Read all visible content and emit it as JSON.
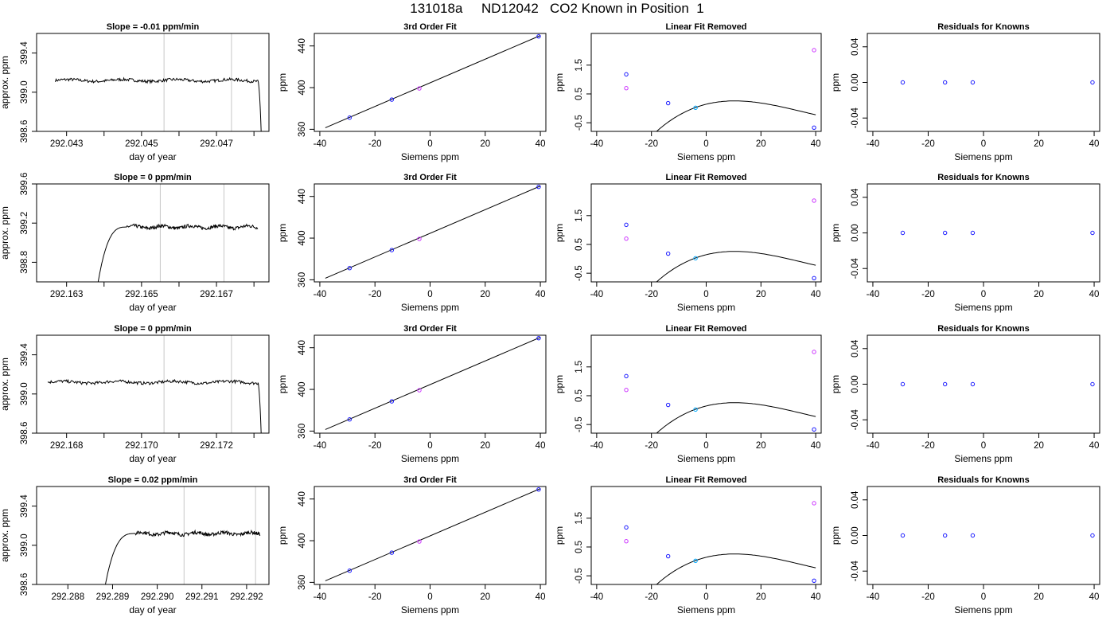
{
  "title": "131018a     ND12042   CO2 Known in Position  1",
  "colors": {
    "trace": "#000000",
    "vline": "#c8c8c8",
    "fit": "#000000",
    "known_point": "#1a1aff",
    "unknown_point": "#cc33ff",
    "mid_point": "#00aaff"
  },
  "chart_data": [
    {
      "type": "line",
      "row": 0,
      "title": "Slope =  -0.01  ppm/min",
      "xlabel": "day of year",
      "ylabel": "approx. ppm",
      "xlim": [
        292.0422,
        292.0484
      ],
      "ylim": [
        398.6,
        399.6
      ],
      "xticks": [
        292.043,
        292.044,
        292.045,
        292.046,
        292.047,
        292.048
      ],
      "xticklabels": [
        "292.043",
        "",
        "292.045",
        "",
        "292.047",
        ""
      ],
      "yticks": [
        398.6,
        399.0,
        399.4
      ],
      "yticklabels": [
        "398.6",
        "399.0",
        "399.4"
      ],
      "vlines": [
        292.0456,
        292.0474
      ],
      "trace": {
        "x0": 292.0427,
        "x_plateau_end": 292.0481,
        "x1": 292.0482,
        "level": 399.12,
        "rise": "none"
      }
    },
    {
      "type": "scatter",
      "row": 0,
      "title": "3rd Order Fit",
      "xlabel": "Siemens ppm",
      "ylabel": "ppm",
      "xlim": [
        -42,
        42
      ],
      "ylim": [
        358,
        452
      ],
      "xticks": [
        -40,
        -20,
        0,
        20,
        40
      ],
      "yticks": [
        360,
        400,
        440
      ],
      "fit": {
        "kind": "line",
        "x": [
          -38,
          40
        ],
        "y": [
          361.5,
          450
        ]
      },
      "points": [
        {
          "x": -29.2,
          "y": 371.2,
          "c": "known"
        },
        {
          "x": -13.9,
          "y": 388.5,
          "c": "known"
        },
        {
          "x": -3.9,
          "y": 399.2,
          "c": "unknown"
        },
        {
          "x": 39.4,
          "y": 449.2,
          "c": "known"
        }
      ]
    },
    {
      "type": "scatter",
      "row": 0,
      "title": "Linear Fit Removed",
      "xlabel": "Siemens ppm",
      "ylabel": "ppm",
      "xlim": [
        -42,
        42
      ],
      "ylim": [
        -0.8,
        2.6
      ],
      "xticks": [
        -40,
        -20,
        0,
        20,
        40
      ],
      "yticks": [
        -0.5,
        0.5,
        1.5
      ],
      "yticklabels": [
        "-0.5",
        "0.5",
        "1.5"
      ],
      "fit": {
        "kind": "cubic",
        "x_from": -38.5,
        "x_to": 40,
        "coef": [
          -4.16,
          2.04,
          -0.0296,
          0.000129
        ]
      },
      "points": [
        {
          "x": -29.2,
          "y": 1.18,
          "c": "known"
        },
        {
          "x": -13.9,
          "y": 0.18,
          "c": "known"
        },
        {
          "x": -3.9,
          "y": 0.02,
          "c": "mid"
        },
        {
          "x": 39.4,
          "y": -0.67,
          "c": "known"
        },
        {
          "x": -29.2,
          "y": 0.7,
          "c": "unknown"
        },
        {
          "x": 39.4,
          "y": 2.02,
          "c": "unknown"
        }
      ]
    },
    {
      "type": "scatter",
      "row": 0,
      "title": "Residuals for Knowns",
      "xlabel": "Siemens ppm",
      "ylabel": "ppm",
      "xlim": [
        -42,
        42
      ],
      "ylim": [
        -0.055,
        0.055
      ],
      "xticks": [
        -40,
        -20,
        0,
        20,
        40
      ],
      "yticks": [
        -0.04,
        0.0,
        0.04
      ],
      "yticklabels": [
        "-0.04",
        "0.00",
        "0.04"
      ],
      "points": [
        {
          "x": -29.2,
          "y": 0,
          "c": "known"
        },
        {
          "x": -13.9,
          "y": 0,
          "c": "known"
        },
        {
          "x": -3.9,
          "y": 0,
          "c": "known"
        },
        {
          "x": 39.4,
          "y": 0,
          "c": "known"
        }
      ]
    },
    {
      "type": "line",
      "row": 1,
      "title": "Slope =  0  ppm/min",
      "xlabel": "day of year",
      "ylabel": "approx. ppm",
      "xlim": [
        292.1622,
        292.1684
      ],
      "ylim": [
        398.6,
        399.6
      ],
      "xticks": [
        292.163,
        292.164,
        292.165,
        292.166,
        292.167,
        292.168
      ],
      "xticklabels": [
        "292.163",
        "",
        "292.165",
        "",
        "292.167",
        ""
      ],
      "yticks": [
        398.8,
        399.2,
        399.6
      ],
      "yticklabels": [
        "398.8",
        "399.2",
        "399.6"
      ],
      "vlines": [
        292.1655,
        292.1672
      ],
      "trace": {
        "x0": 292.1638,
        "x_rise_end": 292.1646,
        "x1": 292.1681,
        "level": 399.16,
        "rise": "up"
      }
    },
    {
      "type": "scatter",
      "row": 1,
      "title": "3rd Order Fit",
      "xlabel": "Siemens ppm",
      "ylabel": "ppm",
      "xlim": [
        -42,
        42
      ],
      "ylim": [
        358,
        452
      ],
      "xticks": [
        -40,
        -20,
        0,
        20,
        40
      ],
      "yticks": [
        360,
        400,
        440
      ],
      "fit": {
        "kind": "line",
        "x": [
          -38,
          40
        ],
        "y": [
          361.5,
          450
        ]
      },
      "points": [
        {
          "x": -29.2,
          "y": 371.2,
          "c": "known"
        },
        {
          "x": -13.9,
          "y": 388.5,
          "c": "known"
        },
        {
          "x": -3.9,
          "y": 399.2,
          "c": "unknown"
        },
        {
          "x": 39.4,
          "y": 449.2,
          "c": "known"
        }
      ]
    },
    {
      "type": "scatter",
      "row": 1,
      "title": "Linear Fit Removed",
      "xlabel": "Siemens ppm",
      "ylabel": "ppm",
      "xlim": [
        -42,
        42
      ],
      "ylim": [
        -0.8,
        2.6
      ],
      "xticks": [
        -40,
        -20,
        0,
        20,
        40
      ],
      "yticks": [
        -0.5,
        0.5,
        1.5
      ],
      "yticklabels": [
        "-0.5",
        "0.5",
        "1.5"
      ],
      "fit": {
        "kind": "cubic",
        "x_from": -38.5,
        "x_to": 40,
        "coef": [
          -4.16,
          2.04,
          -0.0296,
          0.000129
        ]
      },
      "points": [
        {
          "x": -29.2,
          "y": 1.18,
          "c": "known"
        },
        {
          "x": -13.9,
          "y": 0.18,
          "c": "known"
        },
        {
          "x": -3.9,
          "y": 0.02,
          "c": "mid"
        },
        {
          "x": 39.4,
          "y": -0.67,
          "c": "known"
        },
        {
          "x": -29.2,
          "y": 0.7,
          "c": "unknown"
        },
        {
          "x": 39.4,
          "y": 2.02,
          "c": "unknown"
        }
      ]
    },
    {
      "type": "scatter",
      "row": 1,
      "title": "Residuals for Knowns",
      "xlabel": "Siemens ppm",
      "ylabel": "ppm",
      "xlim": [
        -42,
        42
      ],
      "ylim": [
        -0.055,
        0.055
      ],
      "xticks": [
        -40,
        -20,
        0,
        20,
        40
      ],
      "yticks": [
        -0.04,
        0.0,
        0.04
      ],
      "yticklabels": [
        "-0.04",
        "0.00",
        "0.04"
      ],
      "points": [
        {
          "x": -29.2,
          "y": 0,
          "c": "known"
        },
        {
          "x": -13.9,
          "y": 0,
          "c": "known"
        },
        {
          "x": -3.9,
          "y": 0,
          "c": "known"
        },
        {
          "x": 39.4,
          "y": 0,
          "c": "known"
        }
      ]
    },
    {
      "type": "line",
      "row": 2,
      "title": "Slope =  0  ppm/min",
      "xlabel": "day of year",
      "ylabel": "approx. ppm",
      "xlim": [
        292.1672,
        292.1734
      ],
      "ylim": [
        398.6,
        399.6
      ],
      "xticks": [
        292.168,
        292.169,
        292.17,
        292.171,
        292.172,
        292.173
      ],
      "xticklabels": [
        "292.168",
        "",
        "292.170",
        "",
        "292.172",
        ""
      ],
      "yticks": [
        398.6,
        399.0,
        399.4
      ],
      "yticklabels": [
        "398.6",
        "399.0",
        "399.4"
      ],
      "vlines": [
        292.1706,
        292.1724
      ],
      "trace": {
        "x0": 292.1675,
        "x_plateau_end": 292.1731,
        "x1": 292.1732,
        "level": 399.12,
        "rise": "none"
      }
    },
    {
      "type": "scatter",
      "row": 2,
      "title": "3rd Order Fit",
      "xlabel": "Siemens ppm",
      "ylabel": "ppm",
      "xlim": [
        -42,
        42
      ],
      "ylim": [
        358,
        452
      ],
      "xticks": [
        -40,
        -20,
        0,
        20,
        40
      ],
      "yticks": [
        360,
        400,
        440
      ],
      "fit": {
        "kind": "line",
        "x": [
          -38,
          40
        ],
        "y": [
          361.5,
          450
        ]
      },
      "points": [
        {
          "x": -29.2,
          "y": 371.2,
          "c": "known"
        },
        {
          "x": -13.9,
          "y": 388.5,
          "c": "known"
        },
        {
          "x": -3.9,
          "y": 399.2,
          "c": "unknown"
        },
        {
          "x": 39.4,
          "y": 449.2,
          "c": "known"
        }
      ]
    },
    {
      "type": "scatter",
      "row": 2,
      "title": "Linear Fit Removed",
      "xlabel": "Siemens ppm",
      "ylabel": "ppm",
      "xlim": [
        -42,
        42
      ],
      "ylim": [
        -0.8,
        2.6
      ],
      "xticks": [
        -40,
        -20,
        0,
        20,
        40
      ],
      "yticks": [
        -0.5,
        0.5,
        1.5
      ],
      "yticklabels": [
        "-0.5",
        "0.5",
        "1.5"
      ],
      "fit": {
        "kind": "cubic",
        "x_from": -38.5,
        "x_to": 40,
        "coef": [
          -4.16,
          2.04,
          -0.0296,
          0.000129
        ]
      },
      "points": [
        {
          "x": -29.2,
          "y": 1.18,
          "c": "known"
        },
        {
          "x": -13.9,
          "y": 0.18,
          "c": "known"
        },
        {
          "x": -3.9,
          "y": 0.02,
          "c": "mid"
        },
        {
          "x": 39.4,
          "y": -0.67,
          "c": "known"
        },
        {
          "x": -29.2,
          "y": 0.7,
          "c": "unknown"
        },
        {
          "x": 39.4,
          "y": 2.02,
          "c": "unknown"
        }
      ]
    },
    {
      "type": "scatter",
      "row": 2,
      "title": "Residuals for Knowns",
      "xlabel": "Siemens ppm",
      "ylabel": "ppm",
      "xlim": [
        -42,
        42
      ],
      "ylim": [
        -0.055,
        0.055
      ],
      "xticks": [
        -40,
        -20,
        0,
        20,
        40
      ],
      "yticks": [
        -0.04,
        0.0,
        0.04
      ],
      "yticklabels": [
        "-0.04",
        "0.00",
        "0.04"
      ],
      "points": [
        {
          "x": -29.2,
          "y": 0,
          "c": "known"
        },
        {
          "x": -13.9,
          "y": 0,
          "c": "known"
        },
        {
          "x": -3.9,
          "y": 0,
          "c": "known"
        },
        {
          "x": 39.4,
          "y": 0,
          "c": "known"
        }
      ]
    },
    {
      "type": "line",
      "row": 3,
      "title": "Slope =  0.02  ppm/min",
      "xlabel": "day of year",
      "ylabel": "approx. ppm",
      "xlim": [
        292.2873,
        292.2925
      ],
      "ylim": [
        398.6,
        399.6
      ],
      "xticks": [
        292.288,
        292.289,
        292.29,
        292.291,
        292.292
      ],
      "xticklabels": [
        "292.288",
        "292.289",
        "292.290",
        "292.291",
        "292.292"
      ],
      "yticks": [
        398.6,
        399.0,
        399.4
      ],
      "yticklabels": [
        "398.6",
        "399.0",
        "399.4"
      ],
      "vlines": [
        292.2906,
        292.2922
      ],
      "trace": {
        "x0": 292.2888,
        "x_rise_end": 292.2895,
        "x1": 292.2923,
        "level": 399.12,
        "rise": "up"
      }
    },
    {
      "type": "scatter",
      "row": 3,
      "title": "3rd Order Fit",
      "xlabel": "Siemens ppm",
      "ylabel": "ppm",
      "xlim": [
        -42,
        42
      ],
      "ylim": [
        358,
        452
      ],
      "xticks": [
        -40,
        -20,
        0,
        20,
        40
      ],
      "yticks": [
        360,
        400,
        440
      ],
      "fit": {
        "kind": "line",
        "x": [
          -38,
          40
        ],
        "y": [
          361.5,
          450
        ]
      },
      "points": [
        {
          "x": -29.2,
          "y": 371.2,
          "c": "known"
        },
        {
          "x": -13.9,
          "y": 388.5,
          "c": "known"
        },
        {
          "x": -3.9,
          "y": 399.2,
          "c": "unknown"
        },
        {
          "x": 39.4,
          "y": 449.2,
          "c": "known"
        }
      ]
    },
    {
      "type": "scatter",
      "row": 3,
      "title": "Linear Fit Removed",
      "xlabel": "Siemens ppm",
      "ylabel": "ppm",
      "xlim": [
        -42,
        42
      ],
      "ylim": [
        -0.8,
        2.6
      ],
      "xticks": [
        -40,
        -20,
        0,
        20,
        40
      ],
      "yticks": [
        -0.5,
        0.5,
        1.5
      ],
      "yticklabels": [
        "-0.5",
        "0.5",
        "1.5"
      ],
      "fit": {
        "kind": "cubic",
        "x_from": -38.5,
        "x_to": 40,
        "coef": [
          -4.16,
          2.04,
          -0.0296,
          0.000129
        ]
      },
      "points": [
        {
          "x": -29.2,
          "y": 1.18,
          "c": "known"
        },
        {
          "x": -13.9,
          "y": 0.18,
          "c": "known"
        },
        {
          "x": -3.9,
          "y": 0.02,
          "c": "mid"
        },
        {
          "x": 39.4,
          "y": -0.67,
          "c": "known"
        },
        {
          "x": -29.2,
          "y": 0.7,
          "c": "unknown"
        },
        {
          "x": 39.4,
          "y": 2.02,
          "c": "unknown"
        }
      ]
    },
    {
      "type": "scatter",
      "row": 3,
      "title": "Residuals for Knowns",
      "xlabel": "Siemens ppm",
      "ylabel": "ppm",
      "xlim": [
        -42,
        42
      ],
      "ylim": [
        -0.055,
        0.055
      ],
      "xticks": [
        -40,
        -20,
        0,
        20,
        40
      ],
      "yticks": [
        -0.04,
        0.0,
        0.04
      ],
      "yticklabels": [
        "-0.04",
        "0.00",
        "0.04"
      ],
      "points": [
        {
          "x": -29.2,
          "y": 0,
          "c": "known"
        },
        {
          "x": -13.9,
          "y": 0,
          "c": "known"
        },
        {
          "x": -3.9,
          "y": 0,
          "c": "known"
        },
        {
          "x": 39.4,
          "y": 0,
          "c": "known"
        }
      ]
    }
  ]
}
